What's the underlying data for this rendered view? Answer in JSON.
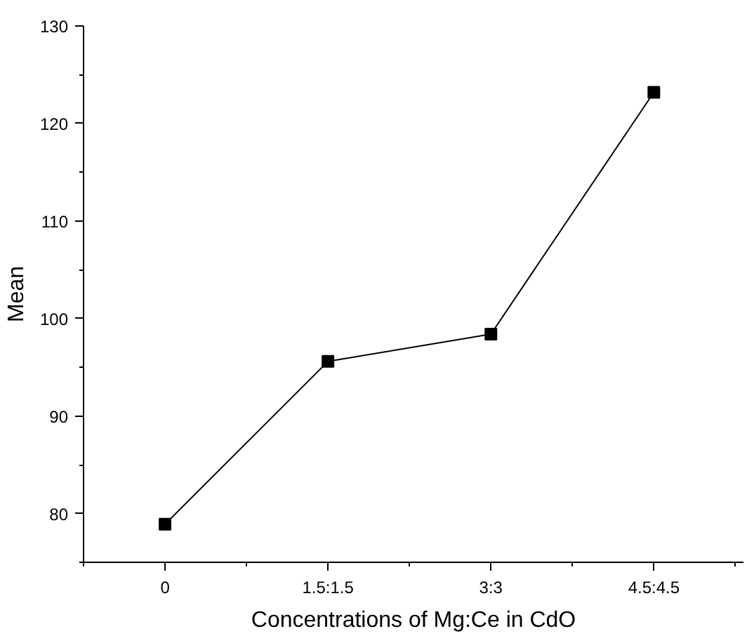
{
  "chart_data": {
    "type": "line",
    "xlabel": "Concentrations of Mg:Ce in CdO",
    "ylabel": "Mean",
    "categories": [
      "0",
      "1.5:1.5",
      "3:3",
      "4.5:4.5"
    ],
    "series": [
      {
        "color": "#000000",
        "values": [
          78.9,
          95.6,
          98.4,
          123.2
        ]
      }
    ],
    "ylim": [
      75,
      130
    ],
    "yticks": [
      80,
      90,
      100,
      110,
      120,
      130
    ],
    "marker": "square",
    "line_style": "solid"
  }
}
